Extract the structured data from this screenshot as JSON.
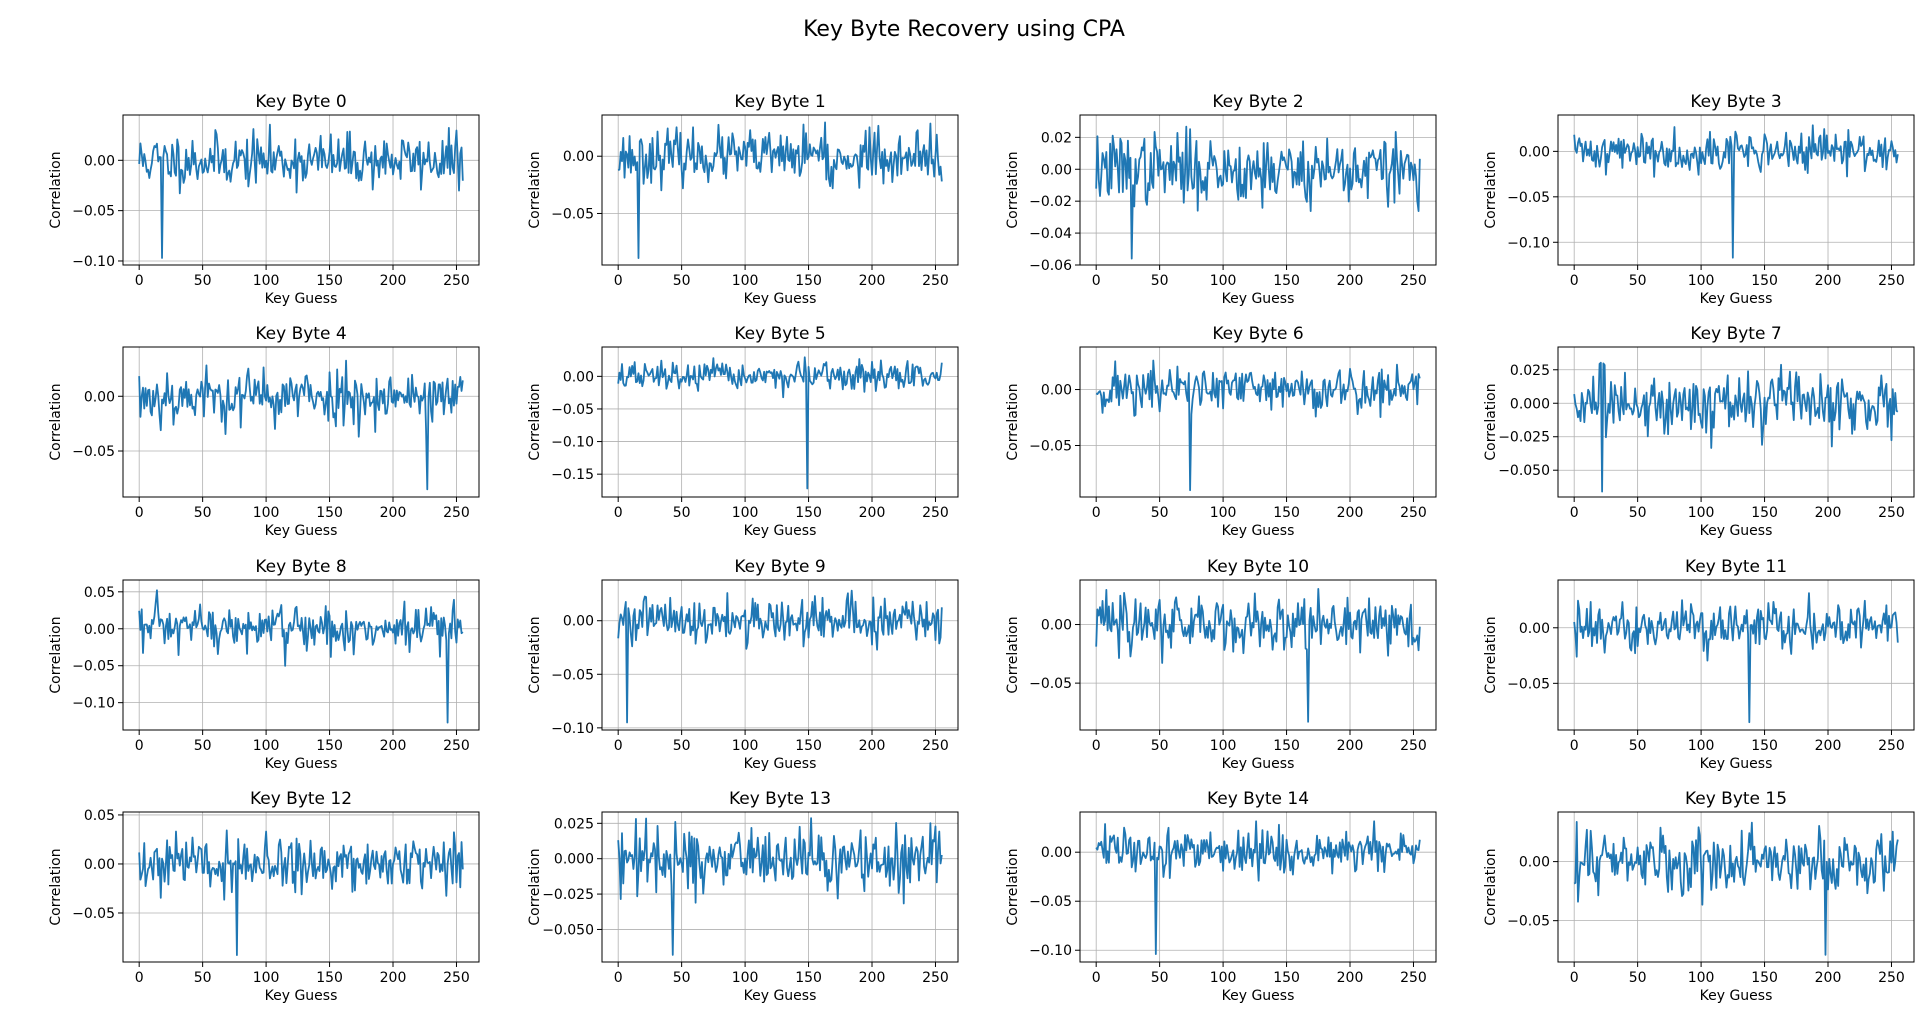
{
  "title": "Key Byte Recovery using CPA",
  "chart_data": {
    "type": "line",
    "title": "Key Byte Recovery using CPA",
    "layout": {
      "rows": 4,
      "cols": 4
    },
    "line_color": "#1f77b4",
    "grid": true,
    "x_ticks": [
      0,
      50,
      100,
      150,
      200,
      250
    ],
    "xlim": [
      -12.75,
      267.75
    ],
    "subplots": [
      {
        "title": "Key Byte 0",
        "xlabel": "Key Guess",
        "ylabel": "Correlation",
        "ylim": [
          -0.104,
          0.045
        ],
        "yticks": [
          -0.1,
          -0.05,
          0.0
        ],
        "ytick_labels": [
          "−0.10",
          "−0.05",
          "0.00"
        ],
        "peak": {
          "x": 18,
          "y": -0.097
        },
        "amp": 0.013,
        "max": 0.04,
        "seed": 11
      },
      {
        "title": "Key Byte 1",
        "xlabel": "Key Guess",
        "ylabel": "Correlation",
        "ylim": [
          -0.095,
          0.036
        ],
        "yticks": [
          -0.05,
          0.0
        ],
        "ytick_labels": [
          "−0.05",
          "0.00"
        ],
        "peak": {
          "x": 16,
          "y": -0.089
        },
        "amp": 0.011,
        "max": 0.033,
        "seed": 23
      },
      {
        "title": "Key Byte 2",
        "xlabel": "Key Guess",
        "ylabel": "Correlation",
        "ylim": [
          -0.06,
          0.034
        ],
        "yticks": [
          -0.06,
          -0.04,
          -0.02,
          0.0,
          0.02
        ],
        "ytick_labels": [
          "−0.06",
          "−0.04",
          "−0.02",
          "0.00",
          "0.02"
        ],
        "peak": {
          "x": 28,
          "y": -0.056
        },
        "amp": 0.011,
        "max": 0.03,
        "seed": 37
      },
      {
        "title": "Key Byte 3",
        "xlabel": "Key Guess",
        "ylabel": "Correlation",
        "ylim": [
          -0.125,
          0.04
        ],
        "yticks": [
          -0.1,
          -0.05,
          0.0
        ],
        "ytick_labels": [
          "−0.10",
          "−0.05",
          "0.00"
        ],
        "peak": {
          "x": 125,
          "y": -0.117
        },
        "amp": 0.011,
        "max": 0.035,
        "seed": 41
      },
      {
        "title": "Key Byte 4",
        "xlabel": "Key Guess",
        "ylabel": "Correlation",
        "ylim": [
          -0.092,
          0.045
        ],
        "yticks": [
          -0.05,
          0.0
        ],
        "ytick_labels": [
          "−0.05",
          "0.00"
        ],
        "peak": {
          "x": 227,
          "y": -0.085
        },
        "amp": 0.013,
        "max": 0.04,
        "seed": 53
      },
      {
        "title": "Key Byte 5",
        "xlabel": "Key Guess",
        "ylabel": "Correlation",
        "ylim": [
          -0.185,
          0.045
        ],
        "yticks": [
          -0.15,
          -0.1,
          -0.05,
          0.0
        ],
        "ytick_labels": [
          "−0.15",
          "−0.10",
          "−0.05",
          "0.00"
        ],
        "peak": {
          "x": 149,
          "y": -0.172
        },
        "amp": 0.011,
        "max": 0.036,
        "seed": 67
      },
      {
        "title": "Key Byte 6",
        "xlabel": "Key Guess",
        "ylabel": "Correlation",
        "ylim": [
          -0.096,
          0.038
        ],
        "yticks": [
          -0.05,
          0.0
        ],
        "ytick_labels": [
          "−0.05",
          "0.00"
        ],
        "peak": {
          "x": 74,
          "y": -0.09
        },
        "amp": 0.011,
        "max": 0.034,
        "seed": 71
      },
      {
        "title": "Key Byte 7",
        "xlabel": "Key Guess",
        "ylabel": "Correlation",
        "ylim": [
          -0.07,
          0.042
        ],
        "yticks": [
          -0.05,
          -0.025,
          0.0,
          0.025
        ],
        "ytick_labels": [
          "−0.050",
          "−0.025",
          "0.000",
          "0.025"
        ],
        "peak": {
          "x": 22,
          "y": -0.066
        },
        "amp": 0.012,
        "max": 0.037,
        "seed": 83
      },
      {
        "title": "Key Byte 8",
        "xlabel": "Key Guess",
        "ylabel": "Correlation",
        "ylim": [
          -0.137,
          0.066
        ],
        "yticks": [
          -0.1,
          -0.05,
          0.0,
          0.05
        ],
        "ytick_labels": [
          "−0.10",
          "−0.05",
          "0.00",
          "0.05"
        ],
        "peak": {
          "x": 243,
          "y": -0.127
        },
        "amp": 0.017,
        "max": 0.057,
        "seed": 97
      },
      {
        "title": "Key Byte 9",
        "xlabel": "Key Guess",
        "ylabel": "Correlation",
        "ylim": [
          -0.102,
          0.038
        ],
        "yticks": [
          -0.1,
          -0.05,
          0.0
        ],
        "ytick_labels": [
          "−0.10",
          "−0.05",
          "0.00"
        ],
        "peak": {
          "x": 7,
          "y": -0.095
        },
        "amp": 0.011,
        "max": 0.033,
        "seed": 101
      },
      {
        "title": "Key Byte 10",
        "xlabel": "Key Guess",
        "ylabel": "Correlation",
        "ylim": [
          -0.09,
          0.038
        ],
        "yticks": [
          -0.05,
          0.0
        ],
        "ytick_labels": [
          "−0.05",
          "0.00"
        ],
        "peak": {
          "x": 167,
          "y": -0.083
        },
        "amp": 0.012,
        "max": 0.034,
        "seed": 113
      },
      {
        "title": "Key Byte 11",
        "xlabel": "Key Guess",
        "ylabel": "Correlation",
        "ylim": [
          -0.092,
          0.043
        ],
        "yticks": [
          -0.05,
          0.0
        ],
        "ytick_labels": [
          "−0.05",
          "0.00"
        ],
        "peak": {
          "x": 138,
          "y": -0.085
        },
        "amp": 0.011,
        "max": 0.037,
        "seed": 127
      },
      {
        "title": "Key Byte 12",
        "xlabel": "Key Guess",
        "ylabel": "Correlation",
        "ylim": [
          -0.1,
          0.053
        ],
        "yticks": [
          -0.05,
          0.0,
          0.05
        ],
        "ytick_labels": [
          "−0.05",
          "0.00",
          "0.05"
        ],
        "peak": {
          "x": 77,
          "y": -0.093
        },
        "amp": 0.014,
        "max": 0.046,
        "seed": 131
      },
      {
        "title": "Key Byte 13",
        "xlabel": "Key Guess",
        "ylabel": "Correlation",
        "ylim": [
          -0.073,
          0.033
        ],
        "yticks": [
          -0.05,
          -0.025,
          0.0,
          0.025
        ],
        "ytick_labels": [
          "−0.050",
          "−0.025",
          "0.000",
          "0.025"
        ],
        "peak": {
          "x": 43,
          "y": -0.068
        },
        "amp": 0.011,
        "max": 0.03,
        "seed": 139
      },
      {
        "title": "Key Byte 14",
        "xlabel": "Key Guess",
        "ylabel": "Correlation",
        "ylim": [
          -0.112,
          0.041
        ],
        "yticks": [
          -0.1,
          -0.05,
          0.0
        ],
        "ytick_labels": [
          "−0.10",
          "−0.05",
          "0.00"
        ],
        "peak": {
          "x": 47,
          "y": -0.104
        },
        "amp": 0.011,
        "max": 0.035,
        "seed": 149
      },
      {
        "title": "Key Byte 15",
        "xlabel": "Key Guess",
        "ylabel": "Correlation",
        "ylim": [
          -0.085,
          0.042
        ],
        "yticks": [
          -0.05,
          0.0
        ],
        "ytick_labels": [
          "−0.05",
          "0.00"
        ],
        "peak": {
          "x": 198,
          "y": -0.079
        },
        "amp": 0.012,
        "max": 0.038,
        "seed": 157
      }
    ]
  }
}
